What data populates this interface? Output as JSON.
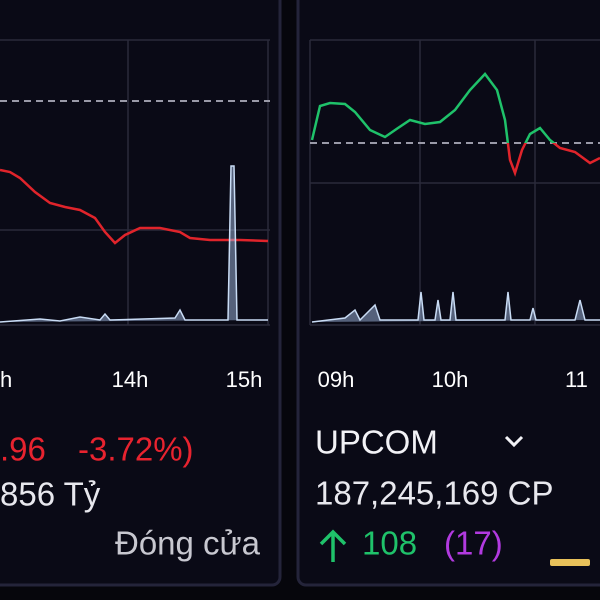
{
  "left_panel": {
    "x_labels": [
      "h",
      "14h",
      "15h"
    ],
    "change": ".96",
    "change_percent": "-3.72%)",
    "volume": "856 Tỷ",
    "status": "Đóng cửa"
  },
  "right_panel": {
    "x_labels": [
      "09h",
      "10h",
      "11"
    ],
    "index_name": "UPCOM",
    "volume": "187,245,169 CP",
    "advances": "108",
    "unchanged": "(17)"
  }
}
